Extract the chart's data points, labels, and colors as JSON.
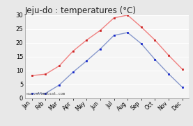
{
  "title": "Jeju-do : temperatures (°C)",
  "months": [
    "Jan",
    "Feb",
    "Mar",
    "Apr",
    "May",
    "Jun",
    "Jul",
    "Aug",
    "Sep",
    "Oct",
    "Nov",
    "Dec"
  ],
  "max_temp": [
    8.2,
    8.7,
    11.7,
    17.0,
    21.0,
    24.5,
    29.0,
    30.0,
    25.7,
    21.0,
    15.5,
    10.5
  ],
  "min_temp": [
    1.8,
    1.8,
    4.8,
    9.4,
    13.5,
    17.8,
    22.7,
    23.7,
    19.7,
    14.0,
    8.8,
    4.0
  ],
  "max_line_color": "#f08080",
  "min_line_color": "#8899cc",
  "marker_color_max": "#cc2222",
  "marker_color_min": "#1122cc",
  "bg_color": "#e8e8e8",
  "plot_bg_color": "#f5f5f5",
  "ylim": [
    0,
    30
  ],
  "yticks": [
    0,
    5,
    10,
    15,
    20,
    25,
    30
  ],
  "grid_color": "#ffffff",
  "watermark": "www.allmetsat.com",
  "title_fontsize": 8.5
}
